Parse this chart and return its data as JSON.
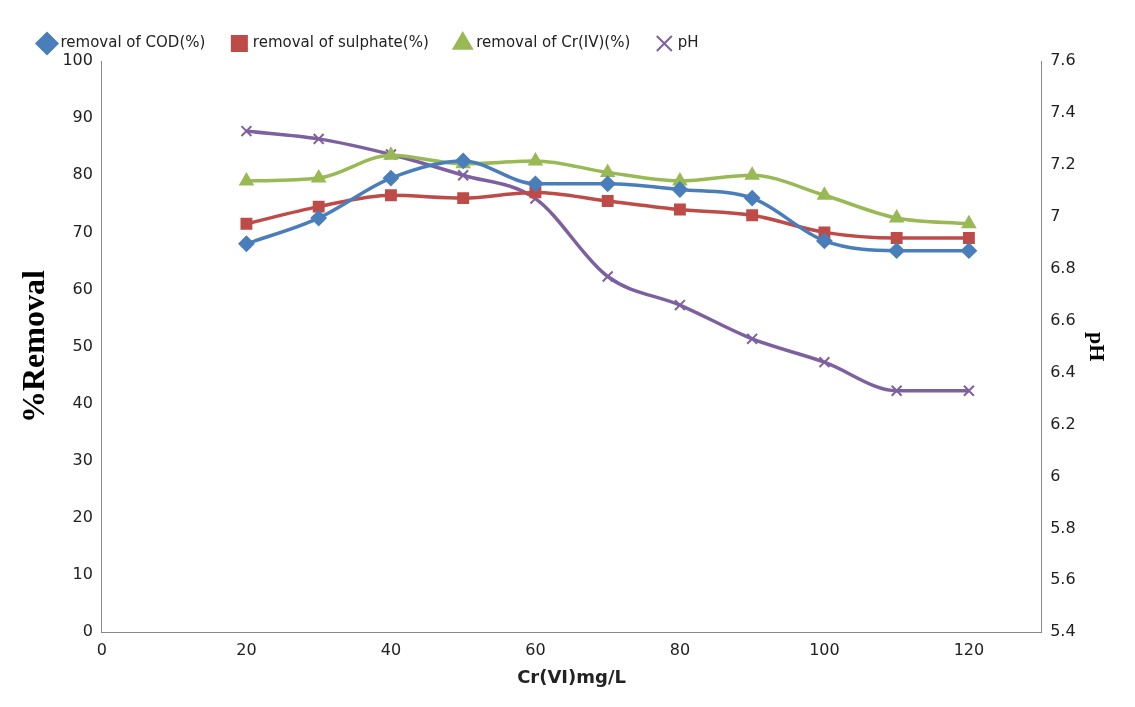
{
  "chart_data": {
    "type": "line",
    "xlabel": "Cr(VI)mg/L",
    "ylabel": "%Removal",
    "y2label": "pH",
    "x": [
      20,
      30,
      40,
      50,
      60,
      70,
      80,
      90,
      100,
      110,
      120
    ],
    "series": [
      {
        "name": "removal of COD(%)",
        "color": "#4a7ebb",
        "marker": "diamond",
        "values": [
          68,
          72.5,
          79.5,
          82.5,
          78.5,
          78.5,
          77.5,
          76,
          68.5,
          66.8,
          66.8
        ]
      },
      {
        "name": "removal of sulphate(%)",
        "color": "#be4b48",
        "marker": "square",
        "values": [
          71.5,
          74.5,
          76.5,
          76,
          77,
          75.5,
          74,
          73,
          70,
          69,
          69
        ]
      },
      {
        "name": "removal of Cr(IV)(%)",
        "color": "#98b954",
        "marker": "triangle",
        "values": [
          79,
          79.5,
          83.5,
          82,
          82.5,
          80.5,
          79,
          80,
          76.5,
          72.5,
          71.5
        ]
      },
      {
        "name": "pH",
        "color": "#7d60a0",
        "marker": "cross",
        "axis": "y2",
        "values": [
          7.33,
          7.3,
          7.24,
          7.16,
          7.07,
          6.77,
          6.66,
          6.53,
          6.44,
          6.33,
          6.33
        ]
      }
    ],
    "xlim": [
      0,
      130
    ],
    "xticks": [
      0,
      20,
      40,
      60,
      80,
      100,
      120
    ],
    "ylim": [
      0,
      100
    ],
    "yticks": [
      0,
      10,
      20,
      30,
      40,
      50,
      60,
      70,
      80,
      90,
      100
    ],
    "y2lim": [
      5.4,
      7.6
    ],
    "y2ticks": [
      5.4,
      5.6,
      5.8,
      6,
      6.2,
      6.4,
      6.6,
      6.8,
      7,
      7.2,
      7.4,
      7.6
    ],
    "grid": false,
    "legend": "top",
    "line_style": "solid"
  }
}
